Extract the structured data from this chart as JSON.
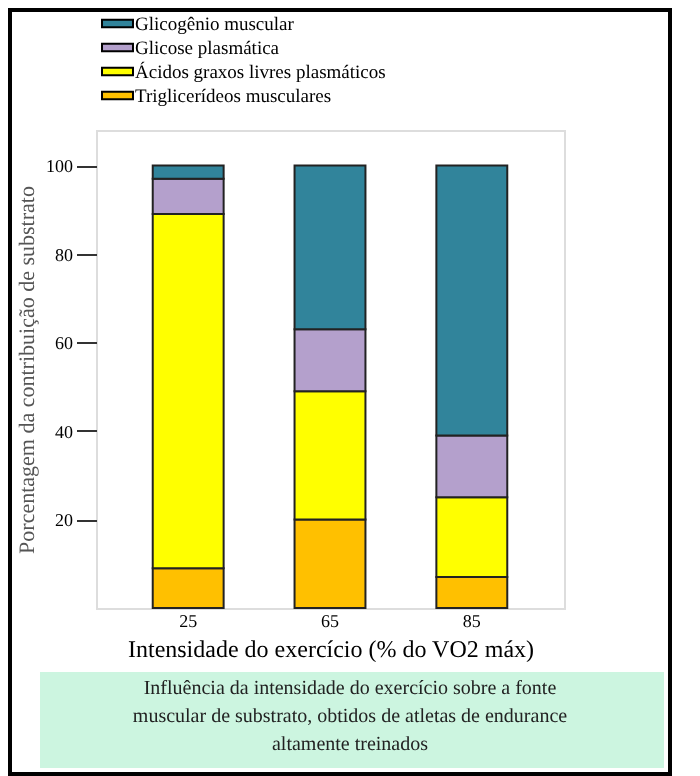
{
  "chart_data": {
    "type": "bar",
    "stacked": true,
    "categories": [
      "25",
      "65",
      "85"
    ],
    "series": [
      {
        "name": "Triglicerídeos musculares",
        "color": "#ffc000",
        "values": [
          9,
          20,
          7
        ]
      },
      {
        "name": "Ácidos graxos livres plasmáticos",
        "color": "#ffff00",
        "values": [
          80,
          29,
          18
        ]
      },
      {
        "name": "Glicose plasmática",
        "color": "#b4a0cc",
        "values": [
          8,
          14,
          14
        ]
      },
      {
        "name": "Glicogênio muscular",
        "color": "#31849b",
        "values": [
          3,
          37,
          61
        ]
      }
    ],
    "ylim": [
      0,
      108
    ],
    "yticks": [
      20,
      40,
      60,
      80,
      100
    ],
    "xlabel": "Intensidade do exercício (% do VO2 máx)",
    "ylabel": "Porcentagem da contribuição de substrato",
    "annotations": [
      "Influência da intensidade do exercício sobre a fonte muscular de substrato, obtidos de atletas de endurance altamente treinados"
    ],
    "legend": "top",
    "grid": false
  }
}
